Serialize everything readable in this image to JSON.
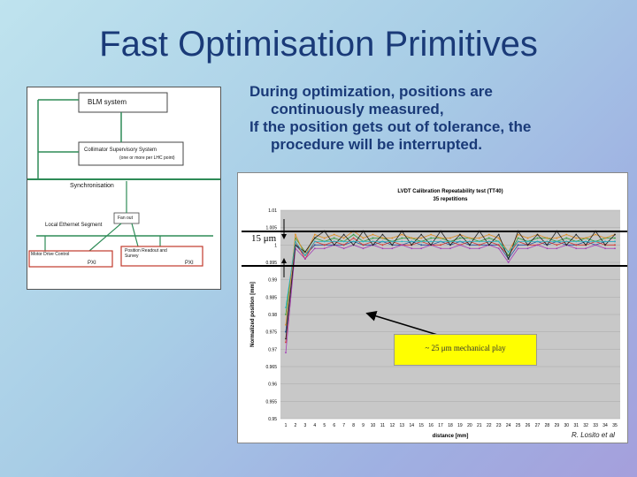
{
  "slide": {
    "title": "Fast Optimisation Primitives"
  },
  "diagram": {
    "blm": "BLM system",
    "collimator": "Collimator Supervisory System",
    "collimator_sub": "(one or more per LHC point)",
    "sync": "Synchronisation",
    "fanout": "Fan out",
    "ethernet": "Local Ethernet Segment",
    "motor": "Motor Drive Control",
    "pxi1": "PXI",
    "position_readout": "Position Readout and Survey",
    "pxi2": "PXI"
  },
  "description": {
    "line1": "During optimization, positions are",
    "line2": "continuously measured,",
    "line3": "If the position gets out of tolerance, the",
    "line4": "procedure will be interrupted."
  },
  "annotations": {
    "tolerance": "15 μm",
    "play": "~ 25 μm mechanical play",
    "credit": "R. Losito et al"
  },
  "colors": {
    "title": "#1a3a78",
    "annotation_bg": "#ffff00",
    "diagram_box_border": "#c0392b",
    "arrow_green": "#2e8b57"
  },
  "chart_data": {
    "type": "line",
    "title": "LVDT Calibration Repeatability test (TT40)",
    "subtitle": "35 repetitions",
    "xlabel": "distance [mm]",
    "ylabel": "Normalized position [mm]",
    "categories": [
      "1",
      "2",
      "3",
      "4",
      "5",
      "6",
      "7",
      "8",
      "9",
      "10",
      "11",
      "12",
      "13",
      "14",
      "15",
      "16",
      "17",
      "18",
      "19",
      "20",
      "21",
      "22",
      "23",
      "24",
      "25",
      "26",
      "27",
      "28",
      "29",
      "30",
      "31",
      "32",
      "33",
      "34",
      "35"
    ],
    "ylim": [
      0.95,
      1.01
    ],
    "yticks": [
      "1.01",
      "1.005",
      "1",
      "0.995",
      "0.99",
      "0.985",
      "0.98",
      "0.975",
      "0.97",
      "0.965",
      "0.96",
      "0.955",
      "0.95"
    ],
    "series": [
      {
        "values": [
          0.975,
          1.0,
          0.997,
          1.0,
          1.0,
          1.0,
          1.0,
          1.001,
          1.0,
          1.0,
          1.001,
          1.0,
          1.0,
          1.001,
          1.0,
          1.0,
          1.001,
          1.0,
          1.001,
          1.0,
          1.0,
          1.0,
          1.0,
          0.996,
          1.0,
          1.0,
          1.001,
          1.0,
          1.001,
          1.0,
          1.0,
          1.001,
          1.0,
          1.001,
          1.001
        ]
      },
      {
        "values": [
          0.972,
          1.001,
          0.996,
          1.001,
          1.0,
          1.001,
          1.0,
          1.002,
          1.0,
          1.001,
          1.0,
          1.001,
          1.0,
          1.0,
          1.001,
          1.0,
          1.0,
          1.001,
          1.0,
          1.001,
          1.0,
          1.001,
          1.0,
          0.997,
          1.001,
          1.0,
          1.0,
          1.001,
          1.0,
          1.001,
          1.0,
          1.0,
          1.001,
          1.0,
          1.0
        ]
      },
      {
        "values": [
          0.98,
          1.002,
          0.998,
          1.002,
          1.001,
          1.002,
          1.001,
          1.003,
          1.001,
          1.002,
          1.002,
          1.001,
          1.002,
          1.002,
          1.001,
          1.002,
          1.002,
          1.001,
          1.002,
          1.002,
          1.001,
          1.002,
          1.001,
          0.997,
          1.002,
          1.001,
          1.002,
          1.002,
          1.001,
          1.002,
          1.001,
          1.002,
          1.001,
          1.002,
          1.002
        ]
      },
      {
        "values": [
          0.969,
          0.999,
          0.996,
          0.999,
          0.999,
          1.0,
          0.999,
          1.0,
          0.999,
          1.0,
          0.999,
          0.999,
          1.0,
          0.999,
          0.999,
          1.0,
          0.999,
          0.999,
          1.0,
          0.999,
          0.999,
          1.0,
          0.999,
          0.995,
          0.999,
          0.999,
          1.0,
          0.999,
          0.999,
          1.0,
          0.999,
          0.999,
          1.0,
          0.999,
          0.999
        ]
      },
      {
        "values": [
          0.977,
          1.003,
          0.997,
          1.003,
          1.002,
          1.003,
          1.002,
          1.004,
          1.002,
          1.003,
          1.002,
          1.002,
          1.003,
          1.002,
          1.002,
          1.003,
          1.002,
          1.002,
          1.003,
          1.002,
          1.002,
          1.003,
          1.002,
          0.998,
          1.003,
          1.002,
          1.003,
          1.002,
          1.002,
          1.003,
          1.002,
          1.002,
          1.003,
          1.002,
          1.003
        ]
      },
      {
        "values": [
          0.973,
          1.0,
          0.998,
          1.002,
          1.004,
          1.0,
          1.003,
          1.0,
          1.004,
          1.0,
          1.003,
          1.0,
          1.004,
          1.0,
          1.003,
          1.0,
          1.004,
          1.0,
          1.003,
          1.0,
          1.004,
          1.0,
          1.003,
          0.996,
          1.004,
          1.0,
          1.003,
          1.0,
          1.004,
          1.0,
          1.003,
          1.0,
          1.004,
          1.0,
          1.003
        ]
      },
      {
        "values": [
          0.982,
          1.001,
          0.997,
          1.001,
          1.001,
          1.001,
          1.001,
          1.001,
          1.001,
          1.001,
          1.001,
          1.001,
          1.001,
          1.001,
          1.001,
          1.001,
          1.001,
          1.001,
          1.001,
          1.001,
          1.001,
          1.001,
          1.001,
          0.998,
          1.001,
          1.001,
          1.001,
          1.001,
          1.001,
          1.001,
          1.001,
          1.001,
          1.001,
          1.001,
          1.001
        ]
      }
    ]
  }
}
